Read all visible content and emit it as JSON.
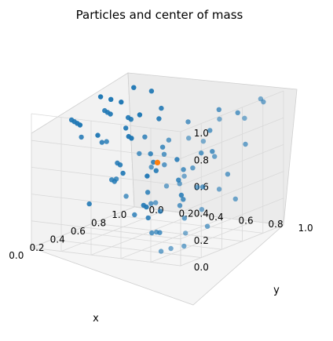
{
  "chart_data": {
    "type": "scatter",
    "projection": "3d",
    "title": "Particles and center of mass",
    "xlabel": "x",
    "ylabel": "y",
    "zlabel": "",
    "xlim": [
      0,
      1
    ],
    "ylim": [
      0,
      1
    ],
    "zlim": [
      0,
      1
    ],
    "grid": true,
    "x_ticks": [
      "0.0",
      "0.2",
      "0.4",
      "0.6",
      "0.8",
      "1.0"
    ],
    "y_ticks": [
      "0.0",
      "0.2",
      "0.4",
      "0.6",
      "0.8",
      "1.0"
    ],
    "z_ticks": [
      "0.0",
      "0.2",
      "0.4",
      "0.6",
      "0.8",
      "1.0"
    ],
    "colors": {
      "particles": "#1f77b4",
      "center": "#ff7f0e",
      "pane": "#f2f2f2",
      "grid": "#d9d9d9"
    },
    "series": [
      {
        "role": "particles",
        "points": [
          [
            0.05,
            0.9,
            0.1
          ],
          [
            0.1,
            0.8,
            0.05
          ],
          [
            0.12,
            0.95,
            0.2
          ],
          [
            0.2,
            0.7,
            0.15
          ],
          [
            0.25,
            0.85,
            0.05
          ],
          [
            0.3,
            0.6,
            0.1
          ],
          [
            0.35,
            0.9,
            0.3
          ],
          [
            0.4,
            0.75,
            0.2
          ],
          [
            0.45,
            0.55,
            0.05
          ],
          [
            0.5,
            0.65,
            0.25
          ],
          [
            0.55,
            0.8,
            0.1
          ],
          [
            0.6,
            0.45,
            0.15
          ],
          [
            0.65,
            0.7,
            0.35
          ],
          [
            0.7,
            0.3,
            0.05
          ],
          [
            0.75,
            0.5,
            0.2
          ],
          [
            0.8,
            0.2,
            0.1
          ],
          [
            0.85,
            0.4,
            0.3
          ],
          [
            0.9,
            0.15,
            0.05
          ],
          [
            0.95,
            0.35,
            0.15
          ],
          [
            0.98,
            0.1,
            0.25
          ],
          [
            0.05,
            0.6,
            0.45
          ],
          [
            0.1,
            0.5,
            0.55
          ],
          [
            0.15,
            0.7,
            0.65
          ],
          [
            0.2,
            0.4,
            0.5
          ],
          [
            0.25,
            0.55,
            0.7
          ],
          [
            0.3,
            0.35,
            0.45
          ],
          [
            0.35,
            0.65,
            0.6
          ],
          [
            0.4,
            0.3,
            0.55
          ],
          [
            0.45,
            0.45,
            0.75
          ],
          [
            0.5,
            0.25,
            0.5
          ],
          [
            0.55,
            0.5,
            0.65
          ],
          [
            0.6,
            0.2,
            0.4
          ],
          [
            0.65,
            0.35,
            0.55
          ],
          [
            0.7,
            0.15,
            0.7
          ],
          [
            0.75,
            0.3,
            0.45
          ],
          [
            0.8,
            0.1,
            0.6
          ],
          [
            0.85,
            0.25,
            0.35
          ],
          [
            0.9,
            0.05,
            0.55
          ],
          [
            0.95,
            0.2,
            0.7
          ],
          [
            0.98,
            0.3,
            0.4
          ],
          [
            0.05,
            0.3,
            0.85
          ],
          [
            0.1,
            0.2,
            0.95
          ],
          [
            0.15,
            0.4,
            0.8
          ],
          [
            0.2,
            0.15,
            0.9
          ],
          [
            0.25,
            0.3,
            0.75
          ],
          [
            0.3,
            0.1,
            0.85
          ],
          [
            0.35,
            0.25,
            0.95
          ],
          [
            0.4,
            0.05,
            0.8
          ],
          [
            0.45,
            0.2,
            0.9
          ],
          [
            0.5,
            0.1,
            0.7
          ],
          [
            0.55,
            0.15,
            0.85
          ],
          [
            0.6,
            0.05,
            0.95
          ],
          [
            0.65,
            0.2,
            0.8
          ],
          [
            0.7,
            0.05,
            0.9
          ],
          [
            0.75,
            0.15,
            0.75
          ],
          [
            0.8,
            0.05,
            0.85
          ],
          [
            0.85,
            0.1,
            0.95
          ],
          [
            0.9,
            0.25,
            0.8
          ],
          [
            0.95,
            0.15,
            0.9
          ],
          [
            0.98,
            0.05,
            0.7
          ],
          [
            0.08,
            0.85,
            0.55
          ],
          [
            0.12,
            0.75,
            0.4
          ],
          [
            0.18,
            0.9,
            0.6
          ],
          [
            0.22,
            0.65,
            0.35
          ],
          [
            0.28,
            0.8,
            0.5
          ],
          [
            0.32,
            0.7,
            0.8
          ],
          [
            0.38,
            0.85,
            0.45
          ],
          [
            0.42,
            0.6,
            0.65
          ],
          [
            0.48,
            0.75,
            0.55
          ],
          [
            0.52,
            0.9,
            0.4
          ],
          [
            0.58,
            0.65,
            0.85
          ],
          [
            0.62,
            0.8,
            0.6
          ],
          [
            0.68,
            0.55,
            0.45
          ],
          [
            0.72,
            0.7,
            0.75
          ],
          [
            0.78,
            0.6,
            0.55
          ],
          [
            0.82,
            0.75,
            0.4
          ],
          [
            0.88,
            0.65,
            0.85
          ],
          [
            0.92,
            0.8,
            0.6
          ],
          [
            0.96,
            0.55,
            0.5
          ],
          [
            0.99,
            0.7,
            0.8
          ],
          [
            0.15,
            0.95,
            0.9
          ],
          [
            0.25,
            0.98,
            0.85
          ],
          [
            0.45,
            0.95,
            0.95
          ],
          [
            0.65,
            0.98,
            0.9
          ],
          [
            0.85,
            0.95,
            0.98
          ],
          [
            0.95,
            0.9,
            0.92
          ],
          [
            0.55,
            0.4,
            0.3
          ],
          [
            0.35,
            0.45,
            0.2
          ],
          [
            0.75,
            0.85,
            0.25
          ],
          [
            0.2,
            0.25,
            0.3
          ]
        ]
      },
      {
        "role": "center",
        "points": [
          [
            0.5,
            0.5,
            0.55
          ]
        ]
      }
    ]
  }
}
